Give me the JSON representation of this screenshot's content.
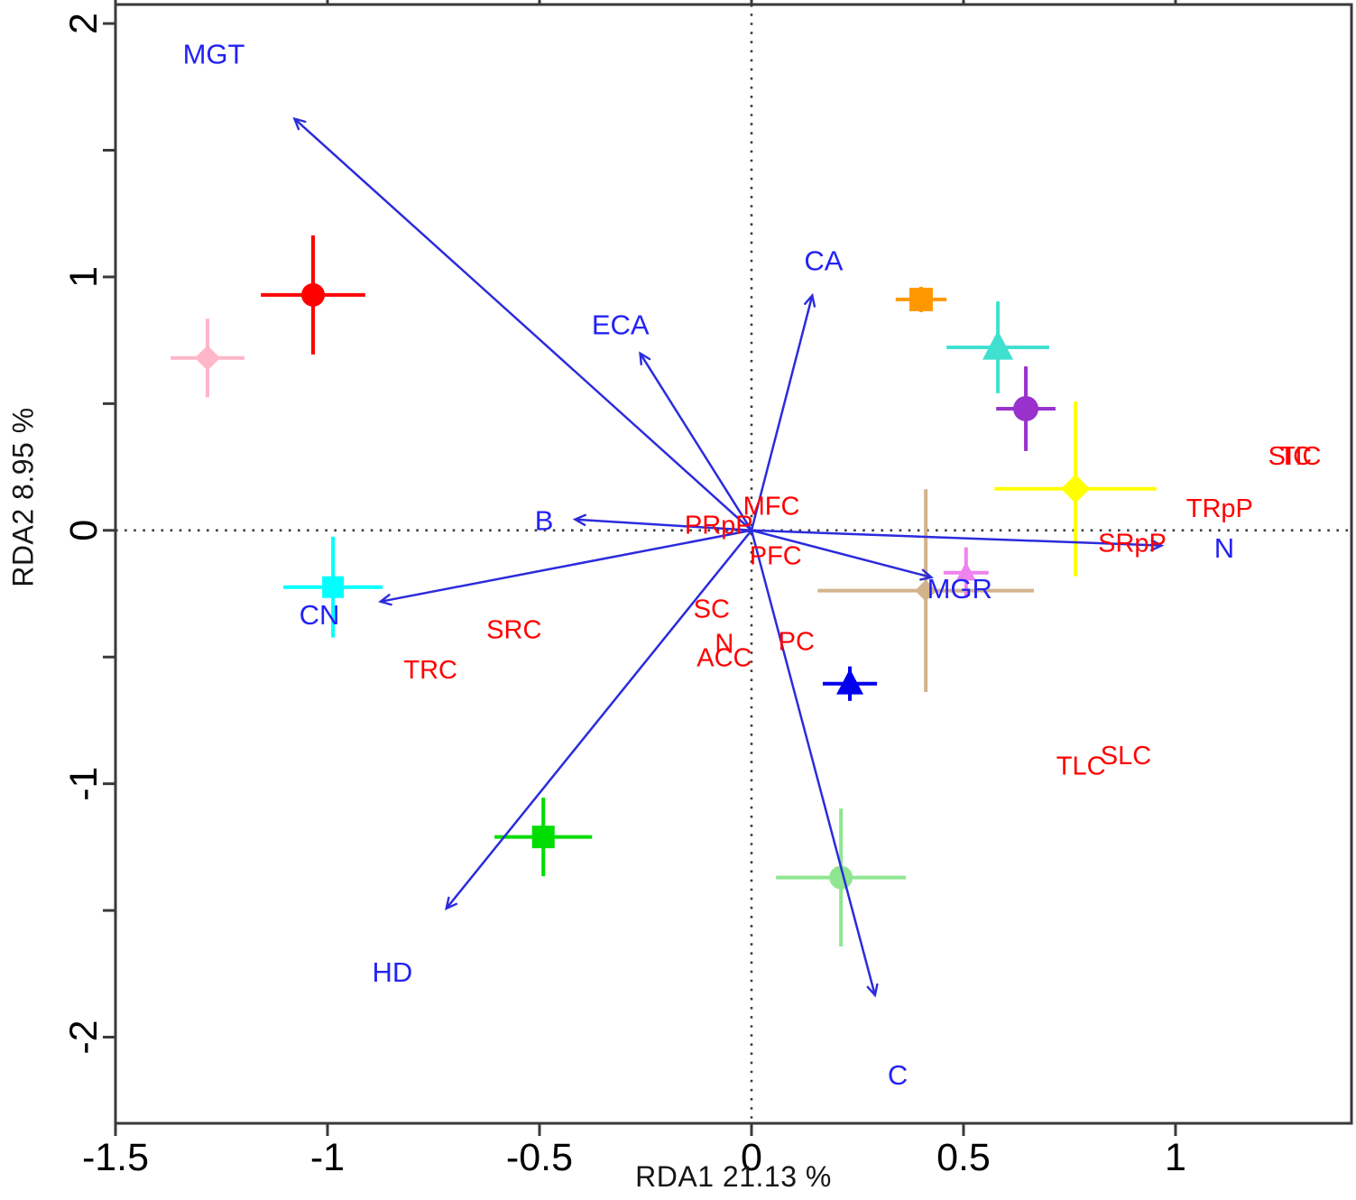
{
  "figure": {
    "title": "",
    "x_axis_title": "RDA1 21.13 %",
    "y_axis_title": "RDA2 8.95 %"
  },
  "chart_data": {
    "type": "scatter",
    "subtype": "rda-ordination-triplot",
    "title": "",
    "xlabel": "RDA1 21.13 %",
    "ylabel": "RDA2 8.95 %",
    "xlim": [
      -1.5,
      1.415
    ],
    "ylim": [
      -2.34,
      2.075
    ],
    "grid": false,
    "zero_reference_lines": "dotted",
    "legend": "none",
    "x_ticks": {
      "values": [
        -1.5,
        -1,
        -0.5,
        0,
        0.5,
        1
      ],
      "labels": [
        "-1.5",
        "-1",
        "-0.5",
        "0",
        "0.5",
        "1"
      ]
    },
    "y_ticks": {
      "values": [
        2,
        1.5,
        1,
        0.5,
        0,
        -0.5,
        -1,
        -1.5,
        -2
      ],
      "labels": [
        "2",
        "",
        "1",
        "",
        "0",
        "",
        "-1",
        "",
        "-2"
      ]
    },
    "colors": {
      "arrow": "#2b2bdd",
      "env_label": "#2222f5",
      "species_label": "#ff0000",
      "axis": "#3a3a3a",
      "tick_text": "#000000",
      "zero_line": "#3c3c3c"
    },
    "env_arrows": [
      {
        "id": "MGT",
        "label": "MGT",
        "x": -1.077,
        "y": 1.623,
        "label_x": -1.268,
        "label_y": 1.879
      },
      {
        "id": "ECA",
        "label": "ECA",
        "x": -0.262,
        "y": 0.697,
        "label_x": -0.309,
        "label_y": 0.811
      },
      {
        "id": "CA",
        "label": "CA",
        "x": 0.143,
        "y": 0.925,
        "label_x": 0.17,
        "label_y": 1.064
      },
      {
        "id": "B",
        "label": "B",
        "x": -0.415,
        "y": 0.043,
        "label_x": -0.489,
        "label_y": 0.039
      },
      {
        "id": "CN",
        "label": "CN",
        "x": -0.874,
        "y": -0.281,
        "label_x": -1.019,
        "label_y": -0.334
      },
      {
        "id": "HD",
        "label": "HD",
        "x": -0.719,
        "y": -1.491,
        "label_x": -0.847,
        "label_y": -1.744
      },
      {
        "id": "C",
        "label": "C",
        "x": 0.291,
        "y": -1.833,
        "label_x": 0.345,
        "label_y": -2.149
      },
      {
        "id": "MGR",
        "label": "MGR",
        "x": 0.423,
        "y": -0.185,
        "label_x": 0.491,
        "label_y": -0.231
      },
      {
        "id": "N",
        "label": "N",
        "x": 0.966,
        "y": -0.06,
        "label_x": 1.115,
        "label_y": -0.071
      }
    ],
    "species_labels": [
      {
        "label": "MFC",
        "x": 0.047,
        "y": 0.093
      },
      {
        "label": "PRpP",
        "x": -0.077,
        "y": 0.018
      },
      {
        "label": "PFC",
        "x": 0.057,
        "y": -0.103
      },
      {
        "label": "SC",
        "x": -0.094,
        "y": -0.313
      },
      {
        "label": "N",
        "x": -0.064,
        "y": -0.448
      },
      {
        "label": "ACC",
        "x": -0.064,
        "y": -0.505
      },
      {
        "label": "PC",
        "x": 0.106,
        "y": -0.441
      },
      {
        "label": "SRC",
        "x": -0.56,
        "y": -0.395
      },
      {
        "label": "TRC",
        "x": -0.757,
        "y": -0.552
      },
      {
        "label": "TLC",
        "x": 0.777,
        "y": -0.932
      },
      {
        "label": "SLC",
        "x": 0.883,
        "y": -0.89
      },
      {
        "label": "TRpP",
        "x": 1.104,
        "y": 0.085
      },
      {
        "label": "SRpP",
        "x": 0.898,
        "y": -0.053
      },
      {
        "label": "SIC",
        "x": 1.27,
        "y": 0.292
      },
      {
        "label": "TIC",
        "x": 1.294,
        "y": 0.292
      }
    ],
    "sample_points": [
      {
        "id": "red-circle",
        "marker": "circle",
        "color": "#ff0000",
        "x": -1.034,
        "y": 0.929,
        "xerr": 0.123,
        "yerr": 0.235,
        "size": 13
      },
      {
        "id": "pink-diamond",
        "marker": "diamond",
        "color": "#ffb6c8",
        "x": -1.283,
        "y": 0.68,
        "xerr": 0.087,
        "yerr": 0.155,
        "size": 14
      },
      {
        "id": "cyan-square",
        "marker": "square",
        "color": "#00ffff",
        "x": -0.987,
        "y": -0.224,
        "xerr": 0.117,
        "yerr": 0.199,
        "size": 24
      },
      {
        "id": "green-square",
        "marker": "square",
        "color": "#00dd00",
        "x": -0.491,
        "y": -1.21,
        "xerr": 0.115,
        "yerr": 0.155,
        "size": 25
      },
      {
        "id": "lightgreen-circle",
        "marker": "circle",
        "color": "#8ee690",
        "x": 0.211,
        "y": -1.37,
        "xerr": 0.153,
        "yerr": 0.272,
        "size": 13
      },
      {
        "id": "blue-triangle",
        "marker": "triangle",
        "color": "#0000ee",
        "x": 0.232,
        "y": -0.605,
        "xerr": 0.064,
        "yerr": 0.068,
        "size": 30
      },
      {
        "id": "orange-square",
        "marker": "square",
        "color": "#ff9800",
        "x": 0.4,
        "y": 0.911,
        "xerr": 0.06,
        "yerr": 0.05,
        "size": 26
      },
      {
        "id": "turquoise-triangle",
        "marker": "triangle",
        "color": "#40e0d0",
        "x": 0.581,
        "y": 0.722,
        "xerr": 0.121,
        "yerr": 0.181,
        "size": 34
      },
      {
        "id": "purple-circle",
        "marker": "circle",
        "color": "#9932cc",
        "x": 0.647,
        "y": 0.48,
        "xerr": 0.07,
        "yerr": 0.167,
        "size": 14
      },
      {
        "id": "yellow-diamond",
        "marker": "diamond",
        "color": "#ffff00",
        "x": 0.764,
        "y": 0.164,
        "xerr": 0.191,
        "yerr": 0.345,
        "size": 16
      },
      {
        "id": "tan-diamond",
        "marker": "diamond",
        "color": "#d2b48c",
        "x": 0.411,
        "y": -0.238,
        "xerr": 0.255,
        "yerr": 0.4,
        "size": 12
      },
      {
        "id": "violet-triangle",
        "marker": "triangle",
        "color": "#ee82ee",
        "x": 0.506,
        "y": -0.167,
        "xerr": 0.053,
        "yerr": 0.1,
        "size": 22
      }
    ]
  }
}
